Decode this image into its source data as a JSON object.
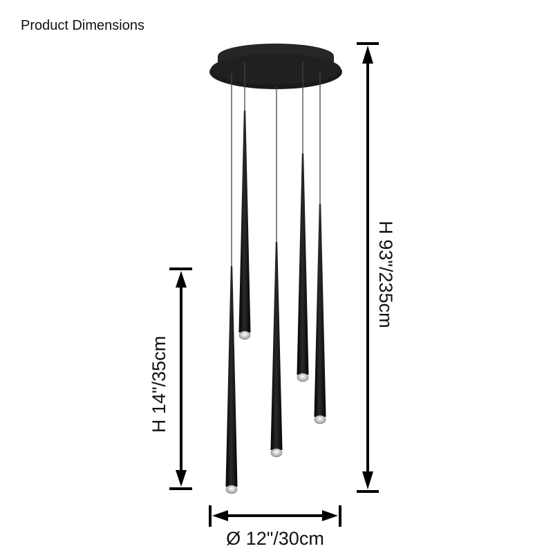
{
  "title": "Product Dimensions",
  "dimensions": {
    "total_height": "H 93\"/235cm",
    "pendant_height": "H 14\"/35cm",
    "diameter": "Ø 12\"/30cm"
  },
  "colors": {
    "fixture": "#111111",
    "dimension_lines": "#000000"
  }
}
